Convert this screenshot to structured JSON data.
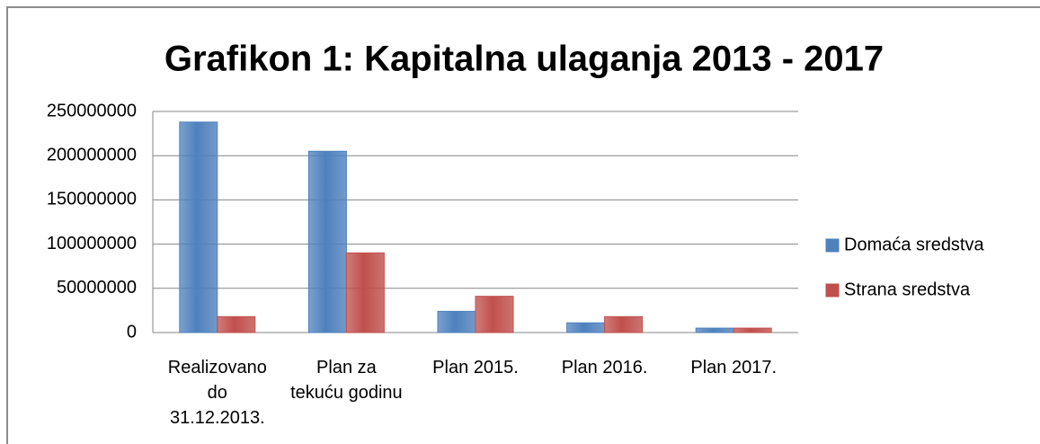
{
  "chart_data": {
    "type": "bar",
    "title": "Grafikon 1: Kapitalna ulaganja 2013 - 2017",
    "categories": [
      "Realizovano do 31.12.2013.",
      "Plan za tekuću godinu",
      "Plan 2015.",
      "Plan 2016.",
      "Plan 2017."
    ],
    "series": [
      {
        "name": "Domaća sredstva",
        "color": "#4f81bd",
        "values": [
          238000000,
          205000000,
          24000000,
          11000000,
          5000000
        ]
      },
      {
        "name": "Strana sredstva",
        "color": "#c0504d",
        "values": [
          18000000,
          90000000,
          41000000,
          18000000,
          5000000
        ]
      }
    ],
    "ylim": [
      0,
      250000000
    ],
    "yticks": [
      0,
      50000000,
      100000000,
      150000000,
      200000000,
      250000000
    ],
    "grid": true,
    "legend": "right"
  }
}
